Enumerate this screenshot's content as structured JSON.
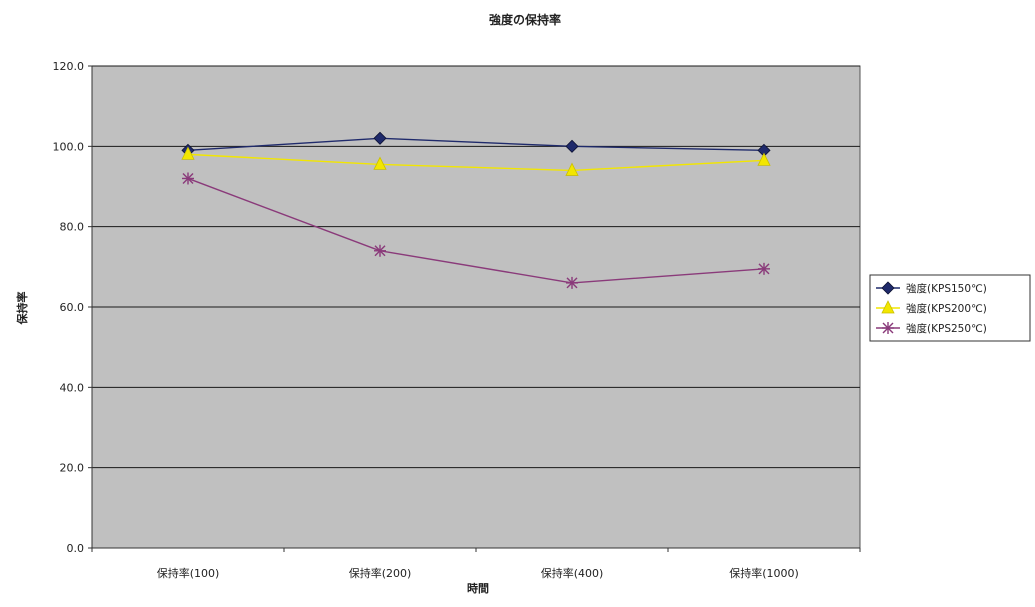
{
  "chart_data": {
    "type": "line",
    "title": "強度の保持率",
    "xlabel": "時間",
    "ylabel": "保持率",
    "categories": [
      "保持率(100)",
      "保持率(200)",
      "保持率(400)",
      "保持率(1000)"
    ],
    "ylim": [
      0,
      120
    ],
    "yticks": [
      "0.0",
      "20.0",
      "40.0",
      "60.0",
      "80.0",
      "100.0",
      "120.0"
    ],
    "grid": true,
    "legend_position": "right",
    "plot_background": "#c0c0c0",
    "series": [
      {
        "name": "強度(KPS150℃)",
        "values": [
          99,
          102,
          100,
          99
        ],
        "color": "#1f2a6b",
        "marker": "diamond"
      },
      {
        "name": "強度(KPS200℃)",
        "values": [
          98,
          95.5,
          94,
          96.5
        ],
        "color": "#f2e600",
        "marker": "triangle"
      },
      {
        "name": "強度(KPS250℃)",
        "values": [
          92,
          74,
          66,
          69.5
        ],
        "color": "#8a3a7a",
        "marker": "star"
      }
    ]
  }
}
